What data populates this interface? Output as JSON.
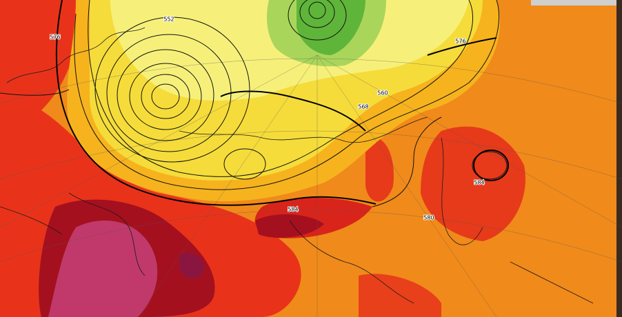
{
  "map": {
    "contour_labels": [
      "552",
      "560",
      "568",
      "576",
      "584",
      "576",
      "584",
      "580"
    ]
  }
}
